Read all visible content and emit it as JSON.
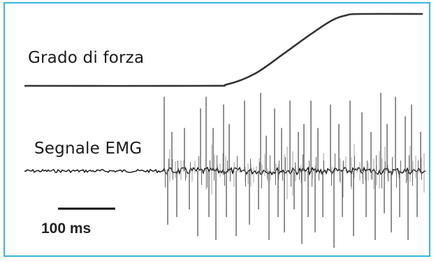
{
  "chart_data": {
    "type": "line",
    "series": [
      {
        "name": "Grado di forza",
        "x": [
          0,
          255,
          290,
          330,
          370,
          410,
          440,
          460,
          480,
          570
        ],
        "y": [
          0.0,
          0.0,
          0.02,
          0.17,
          0.44,
          0.72,
          0.91,
          0.98,
          1.0,
          1.0
        ]
      },
      {
        "name": "Segnale EMG",
        "type": "spike-train",
        "onset": 200,
        "end": 575,
        "up_spikes": [
          [
            200,
            0.95
          ],
          [
            211,
            0.5
          ],
          [
            229,
            0.55
          ],
          [
            252,
            0.8
          ],
          [
            260,
            0.95
          ],
          [
            270,
            0.55
          ],
          [
            285,
            0.85
          ],
          [
            293,
            0.6
          ],
          [
            315,
            0.9
          ],
          [
            338,
            1.0
          ],
          [
            346,
            0.45
          ],
          [
            358,
            0.8
          ],
          [
            368,
            0.55
          ],
          [
            380,
            0.9
          ],
          [
            392,
            0.5
          ],
          [
            400,
            0.6
          ],
          [
            410,
            0.9
          ],
          [
            420,
            0.55
          ],
          [
            438,
            0.85
          ],
          [
            450,
            0.6
          ],
          [
            466,
            0.9
          ],
          [
            483,
            0.75
          ],
          [
            496,
            0.5
          ],
          [
            510,
            1.0
          ],
          [
            519,
            0.6
          ],
          [
            531,
            0.95
          ],
          [
            545,
            0.7
          ],
          [
            554,
            0.85
          ],
          [
            567,
            0.5
          ]
        ],
        "down_spikes": [
          [
            205,
            0.7
          ],
          [
            218,
            0.6
          ],
          [
            236,
            0.5
          ],
          [
            248,
            0.85
          ],
          [
            264,
            0.6
          ],
          [
            274,
            0.9
          ],
          [
            289,
            0.6
          ],
          [
            303,
            0.85
          ],
          [
            322,
            0.7
          ],
          [
            335,
            0.5
          ],
          [
            350,
            0.9
          ],
          [
            363,
            0.6
          ],
          [
            372,
            0.8
          ],
          [
            386,
            0.5
          ],
          [
            397,
            0.95
          ],
          [
            406,
            0.6
          ],
          [
            416,
            0.8
          ],
          [
            427,
            0.6
          ],
          [
            443,
            1.0
          ],
          [
            455,
            0.6
          ],
          [
            471,
            0.85
          ],
          [
            489,
            0.6
          ],
          [
            502,
            0.9
          ],
          [
            515,
            0.55
          ],
          [
            525,
            0.8
          ],
          [
            537,
            0.6
          ],
          [
            549,
            0.9
          ],
          [
            562,
            0.6
          ]
        ]
      }
    ],
    "scale_bar": {
      "label": "100 ms",
      "duration_ms": 100
    },
    "line_color": "#333333",
    "frame_color": "#35b6da"
  }
}
